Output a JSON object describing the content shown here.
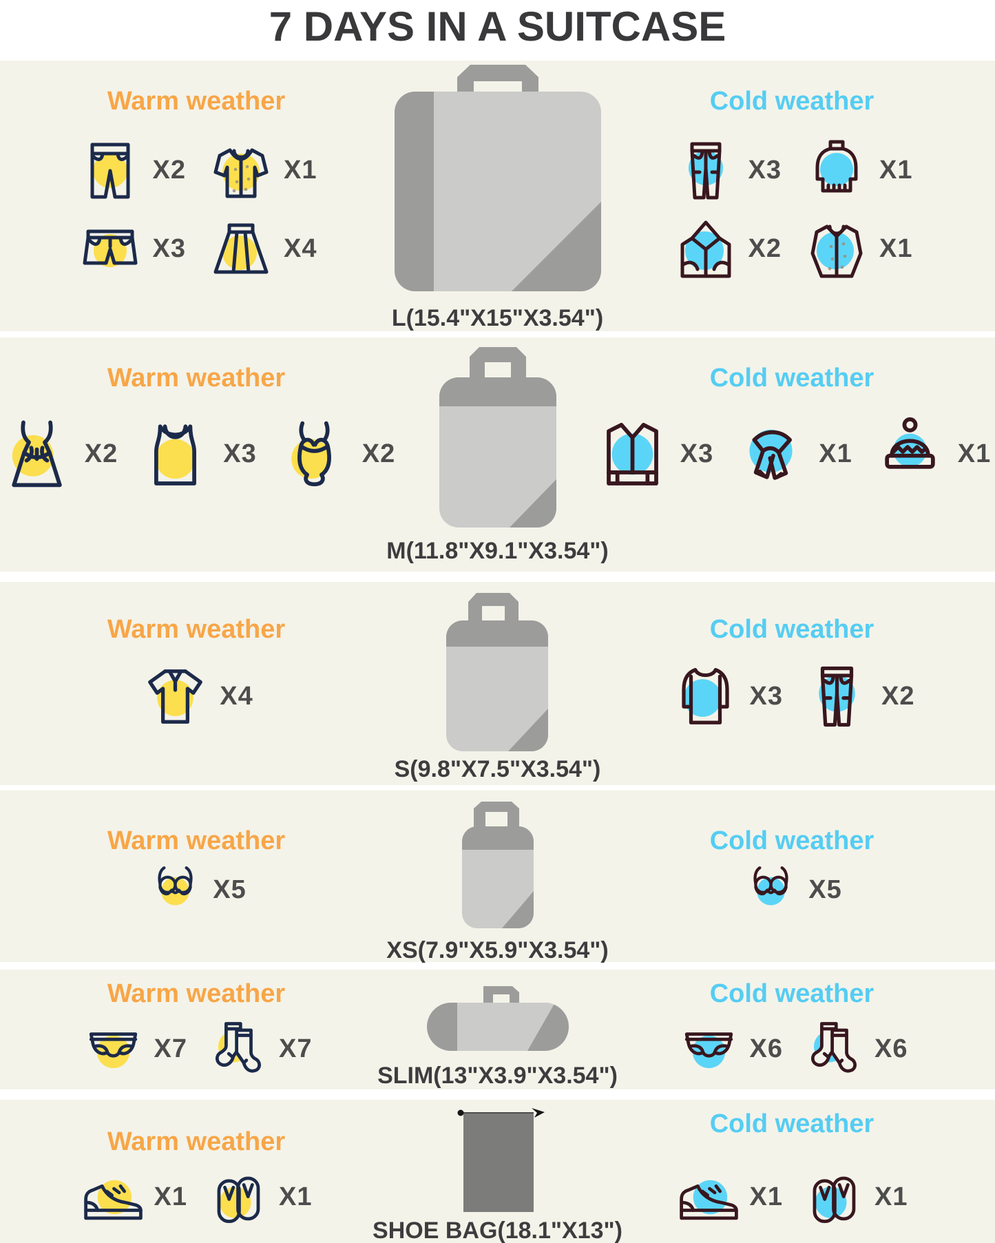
{
  "title": "7 DAYS IN A SUITCASE",
  "warm_label": "Warm weather",
  "cold_label": "Cold weather",
  "colors": {
    "warm_accent": "#f7a648",
    "cold_accent": "#55cdf3",
    "warm_highlight": "#fbdf4e",
    "cold_highlight": "#5bd5f7",
    "warm_outline": "#1c2a4a",
    "cold_outline": "#38171f",
    "band_bg": "#f4f3e9",
    "count_color": "#4d4d4d",
    "title_color": "#39393b",
    "cube_gray": "#9c9c9b",
    "cube_light": "#cbcbca",
    "shoe_bag_gray": "#7c7c7b"
  },
  "rows": [
    {
      "cube": {
        "size_label": "L(15.4\"X15\"X3.54\")",
        "shape": "l"
      },
      "warm": [
        {
          "icon": "pants",
          "count": "X2"
        },
        {
          "icon": "blouse",
          "count": "X1"
        },
        {
          "icon": "shorts",
          "count": "X3"
        },
        {
          "icon": "skirt",
          "count": "X4"
        }
      ],
      "cold": [
        {
          "icon": "joggers",
          "count": "X3"
        },
        {
          "icon": "turtleneck-sweater",
          "count": "X1"
        },
        {
          "icon": "hoodie",
          "count": "X2"
        },
        {
          "icon": "button-shirt",
          "count": "X1"
        }
      ]
    },
    {
      "cube": {
        "size_label": "M(11.8\"X9.1\"X3.54\")",
        "shape": "m"
      },
      "warm": [
        {
          "icon": "dress",
          "count": "X2"
        },
        {
          "icon": "tank-top",
          "count": "X3"
        },
        {
          "icon": "swimsuit",
          "count": "X2"
        }
      ],
      "cold": [
        {
          "icon": "collared-jacket",
          "count": "X3"
        },
        {
          "icon": "scarf",
          "count": "X1"
        },
        {
          "icon": "beanie",
          "count": "X1"
        }
      ]
    },
    {
      "cube": {
        "size_label": "S(9.8\"X7.5\"X3.54\")",
        "shape": "s"
      },
      "warm": [
        {
          "icon": "polo-shirt",
          "count": "X4"
        }
      ],
      "cold": [
        {
          "icon": "long-sleeve-top",
          "count": "X3"
        },
        {
          "icon": "leggings",
          "count": "X2"
        }
      ]
    },
    {
      "cube": {
        "size_label": "XS(7.9\"X5.9\"X3.54\")",
        "shape": "xs"
      },
      "warm": [
        {
          "icon": "bra",
          "count": "X5"
        }
      ],
      "cold": [
        {
          "icon": "bra",
          "count": "X5"
        }
      ]
    },
    {
      "cube": {
        "size_label": "SLIM(13\"X3.9\"X3.54\")",
        "shape": "slim"
      },
      "warm": [
        {
          "icon": "underwear",
          "count": "X7"
        },
        {
          "icon": "socks",
          "count": "X7"
        }
      ],
      "cold": [
        {
          "icon": "underwear",
          "count": "X6"
        },
        {
          "icon": "socks",
          "count": "X6"
        }
      ]
    },
    {
      "cube": {
        "size_label": "SHOE BAG(18.1\"X13\")",
        "shape": "shoebag"
      },
      "warm": [
        {
          "icon": "sneaker",
          "count": "X1"
        },
        {
          "icon": "flip-flops",
          "count": "X1"
        }
      ],
      "cold": [
        {
          "icon": "sneaker",
          "count": "X1"
        },
        {
          "icon": "flip-flops",
          "count": "X1"
        }
      ]
    }
  ]
}
